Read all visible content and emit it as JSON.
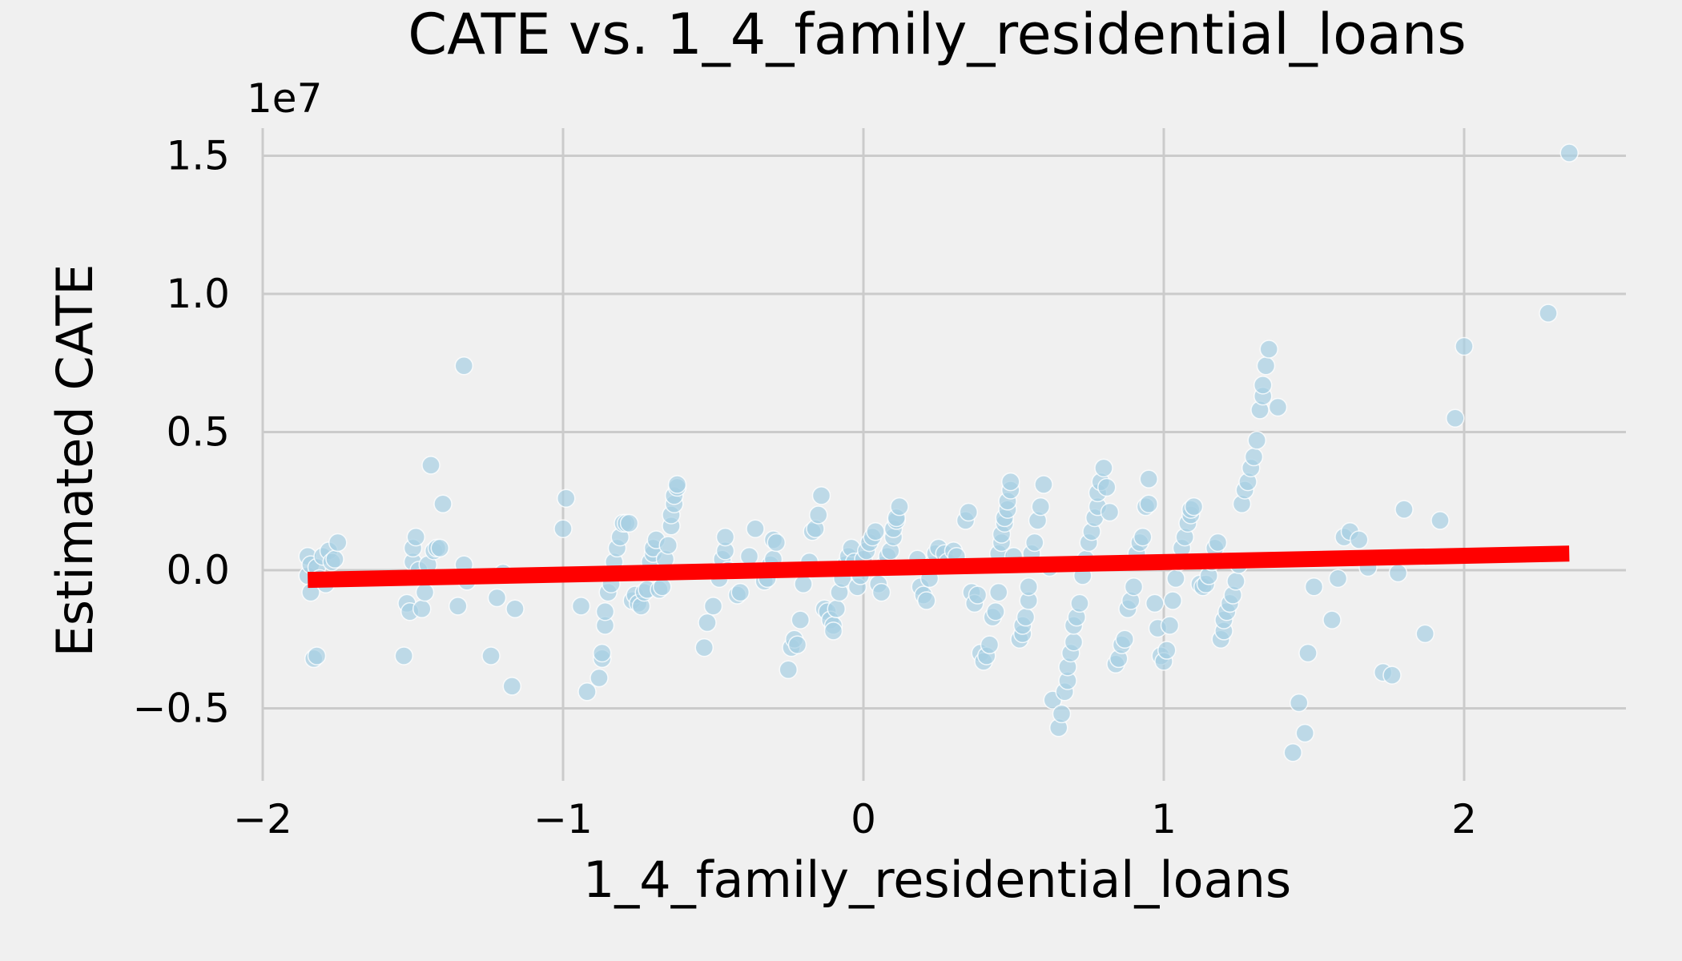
{
  "chart_data": {
    "type": "scatter",
    "title": "CATE vs. 1_4_family_residential_loans",
    "xlabel": "1_4_family_residential_loans",
    "ylabel": "Estimated CATE",
    "y_scale_label": "1e7",
    "xlim": [
      -2.0,
      2.55
    ],
    "ylim": [
      -0.75,
      1.6
    ],
    "xticks": [
      -2,
      -1,
      0,
      1,
      2
    ],
    "xtick_labels": [
      "−2",
      "−1",
      "0",
      "1",
      "2"
    ],
    "yticks": [
      -0.5,
      0.0,
      0.5,
      1.0,
      1.5
    ],
    "ytick_labels": [
      "−0.5",
      "0.0",
      "0.5",
      "1.0",
      "1.5"
    ],
    "grid": true,
    "colors": {
      "background": "#f0f0f0",
      "points": "#a6cee3",
      "trend": "#ff0000",
      "grid": "#cbcbcb"
    },
    "series": [
      {
        "kind": "scatter",
        "points": [
          [
            -1.85,
            -0.02
          ],
          [
            -1.85,
            0.05
          ],
          [
            -1.84,
            -0.08
          ],
          [
            -1.84,
            0.02
          ],
          [
            -1.83,
            -0.32
          ],
          [
            -1.82,
            -0.31
          ],
          [
            -1.82,
            0.01
          ],
          [
            -1.81,
            -0.03
          ],
          [
            -1.8,
            0.05
          ],
          [
            -1.79,
            -0.05
          ],
          [
            -1.78,
            0.07
          ],
          [
            -1.77,
            0.03
          ],
          [
            -1.76,
            0.04
          ],
          [
            -1.75,
            0.1
          ],
          [
            -1.53,
            -0.31
          ],
          [
            -1.52,
            -0.12
          ],
          [
            -1.51,
            -0.15
          ],
          [
            -1.5,
            0.03
          ],
          [
            -1.5,
            0.08
          ],
          [
            -1.49,
            0.12
          ],
          [
            -1.48,
            0.0
          ],
          [
            -1.47,
            -0.14
          ],
          [
            -1.46,
            -0.08
          ],
          [
            -1.45,
            0.02
          ],
          [
            -1.44,
            0.38
          ],
          [
            -1.43,
            0.07
          ],
          [
            -1.42,
            0.08
          ],
          [
            -1.41,
            0.08
          ],
          [
            -1.4,
            0.24
          ],
          [
            -1.35,
            -0.13
          ],
          [
            -1.33,
            0.74
          ],
          [
            -1.33,
            0.02
          ],
          [
            -1.32,
            -0.04
          ],
          [
            -1.24,
            -0.31
          ],
          [
            -1.22,
            -0.1
          ],
          [
            -1.2,
            -0.01
          ],
          [
            -1.17,
            -0.42
          ],
          [
            -1.16,
            -0.14
          ],
          [
            -1.0,
            0.15
          ],
          [
            -0.99,
            0.26
          ],
          [
            -0.94,
            -0.13
          ],
          [
            -0.92,
            -0.44
          ],
          [
            -0.88,
            -0.39
          ],
          [
            -0.87,
            -0.32
          ],
          [
            -0.87,
            -0.3
          ],
          [
            -0.86,
            -0.2
          ],
          [
            -0.86,
            -0.15
          ],
          [
            -0.85,
            -0.08
          ],
          [
            -0.84,
            -0.05
          ],
          [
            -0.83,
            0.03
          ],
          [
            -0.82,
            0.08
          ],
          [
            -0.81,
            0.12
          ],
          [
            -0.8,
            0.17
          ],
          [
            -0.79,
            0.17
          ],
          [
            -0.78,
            0.17
          ],
          [
            -0.77,
            -0.11
          ],
          [
            -0.76,
            -0.09
          ],
          [
            -0.75,
            -0.12
          ],
          [
            -0.74,
            -0.13
          ],
          [
            -0.73,
            -0.08
          ],
          [
            -0.72,
            -0.07
          ],
          [
            -0.71,
            0.03
          ],
          [
            -0.7,
            0.06
          ],
          [
            -0.7,
            0.08
          ],
          [
            -0.69,
            0.11
          ],
          [
            -0.68,
            -0.07
          ],
          [
            -0.67,
            -0.06
          ],
          [
            -0.66,
            0.04
          ],
          [
            -0.65,
            0.09
          ],
          [
            -0.64,
            0.16
          ],
          [
            -0.64,
            0.2
          ],
          [
            -0.63,
            0.24
          ],
          [
            -0.63,
            0.27
          ],
          [
            -0.62,
            0.3
          ],
          [
            -0.62,
            0.31
          ],
          [
            -0.53,
            -0.28
          ],
          [
            -0.52,
            -0.19
          ],
          [
            -0.5,
            -0.13
          ],
          [
            -0.48,
            -0.03
          ],
          [
            -0.47,
            0.04
          ],
          [
            -0.46,
            0.07
          ],
          [
            -0.46,
            0.12
          ],
          [
            -0.45,
            0.0
          ],
          [
            -0.42,
            -0.09
          ],
          [
            -0.41,
            -0.08
          ],
          [
            -0.38,
            0.05
          ],
          [
            -0.36,
            0.15
          ],
          [
            -0.33,
            -0.04
          ],
          [
            -0.32,
            -0.03
          ],
          [
            -0.31,
            0.02
          ],
          [
            -0.3,
            0.04
          ],
          [
            -0.3,
            0.11
          ],
          [
            -0.29,
            0.1
          ],
          [
            -0.25,
            -0.36
          ],
          [
            -0.24,
            -0.28
          ],
          [
            -0.23,
            -0.25
          ],
          [
            -0.22,
            -0.27
          ],
          [
            -0.21,
            -0.18
          ],
          [
            -0.2,
            -0.05
          ],
          [
            -0.18,
            0.03
          ],
          [
            -0.17,
            0.14
          ],
          [
            -0.16,
            0.15
          ],
          [
            -0.15,
            0.2
          ],
          [
            -0.14,
            0.27
          ],
          [
            -0.13,
            -0.14
          ],
          [
            -0.12,
            -0.15
          ],
          [
            -0.11,
            -0.18
          ],
          [
            -0.1,
            -0.2
          ],
          [
            -0.1,
            -0.22
          ],
          [
            -0.09,
            -0.14
          ],
          [
            -0.08,
            -0.08
          ],
          [
            -0.07,
            -0.03
          ],
          [
            -0.06,
            0.02
          ],
          [
            -0.05,
            0.05
          ],
          [
            -0.04,
            0.08
          ],
          [
            -0.03,
            0.03
          ],
          [
            -0.02,
            -0.06
          ],
          [
            -0.01,
            -0.02
          ],
          [
            0.0,
            0.04
          ],
          [
            0.01,
            0.07
          ],
          [
            0.02,
            0.1
          ],
          [
            0.03,
            0.12
          ],
          [
            0.04,
            0.14
          ],
          [
            0.05,
            -0.05
          ],
          [
            0.06,
            -0.08
          ],
          [
            0.07,
            0.02
          ],
          [
            0.08,
            0.05
          ],
          [
            0.09,
            0.07
          ],
          [
            0.1,
            0.12
          ],
          [
            0.1,
            0.15
          ],
          [
            0.11,
            0.18
          ],
          [
            0.11,
            0.19
          ],
          [
            0.12,
            0.23
          ],
          [
            0.18,
            0.04
          ],
          [
            0.19,
            -0.06
          ],
          [
            0.2,
            -0.09
          ],
          [
            0.21,
            -0.11
          ],
          [
            0.22,
            -0.03
          ],
          [
            0.23,
            0.02
          ],
          [
            0.24,
            0.06
          ],
          [
            0.25,
            0.08
          ],
          [
            0.27,
            0.06
          ],
          [
            0.28,
            0.03
          ],
          [
            0.3,
            0.07
          ],
          [
            0.31,
            0.05
          ],
          [
            0.34,
            0.18
          ],
          [
            0.35,
            0.21
          ],
          [
            0.36,
            -0.08
          ],
          [
            0.37,
            -0.12
          ],
          [
            0.38,
            -0.09
          ],
          [
            0.39,
            -0.3
          ],
          [
            0.4,
            -0.33
          ],
          [
            0.41,
            -0.31
          ],
          [
            0.42,
            -0.27
          ],
          [
            0.43,
            -0.17
          ],
          [
            0.44,
            -0.15
          ],
          [
            0.45,
            -0.08
          ],
          [
            0.45,
            0.06
          ],
          [
            0.46,
            0.1
          ],
          [
            0.46,
            0.13
          ],
          [
            0.47,
            0.17
          ],
          [
            0.47,
            0.19
          ],
          [
            0.48,
            0.22
          ],
          [
            0.48,
            0.25
          ],
          [
            0.49,
            0.29
          ],
          [
            0.49,
            0.32
          ],
          [
            0.5,
            0.05
          ],
          [
            0.52,
            -0.25
          ],
          [
            0.53,
            -0.23
          ],
          [
            0.53,
            -0.2
          ],
          [
            0.54,
            -0.17
          ],
          [
            0.55,
            -0.11
          ],
          [
            0.55,
            -0.06
          ],
          [
            0.56,
            0.06
          ],
          [
            0.57,
            0.1
          ],
          [
            0.58,
            0.18
          ],
          [
            0.59,
            0.23
          ],
          [
            0.6,
            0.31
          ],
          [
            0.62,
            0.01
          ],
          [
            0.63,
            -0.47
          ],
          [
            0.65,
            -0.57
          ],
          [
            0.66,
            -0.52
          ],
          [
            0.67,
            -0.44
          ],
          [
            0.68,
            -0.4
          ],
          [
            0.68,
            -0.35
          ],
          [
            0.69,
            -0.3
          ],
          [
            0.7,
            -0.26
          ],
          [
            0.7,
            -0.2
          ],
          [
            0.71,
            -0.17
          ],
          [
            0.72,
            -0.12
          ],
          [
            0.73,
            -0.02
          ],
          [
            0.74,
            0.04
          ],
          [
            0.75,
            0.1
          ],
          [
            0.76,
            0.14
          ],
          [
            0.77,
            0.19
          ],
          [
            0.78,
            0.23
          ],
          [
            0.78,
            0.28
          ],
          [
            0.79,
            0.32
          ],
          [
            0.8,
            0.37
          ],
          [
            0.81,
            0.3
          ],
          [
            0.82,
            0.21
          ],
          [
            0.84,
            -0.34
          ],
          [
            0.85,
            -0.32
          ],
          [
            0.86,
            -0.27
          ],
          [
            0.87,
            -0.25
          ],
          [
            0.88,
            -0.14
          ],
          [
            0.89,
            -0.11
          ],
          [
            0.9,
            -0.06
          ],
          [
            0.91,
            0.06
          ],
          [
            0.92,
            0.1
          ],
          [
            0.93,
            0.12
          ],
          [
            0.94,
            0.23
          ],
          [
            0.95,
            0.24
          ],
          [
            0.95,
            0.33
          ],
          [
            0.97,
            -0.12
          ],
          [
            0.98,
            -0.21
          ],
          [
            0.99,
            -0.31
          ],
          [
            1.0,
            -0.33
          ],
          [
            1.01,
            -0.29
          ],
          [
            1.02,
            -0.2
          ],
          [
            1.03,
            -0.11
          ],
          [
            1.04,
            -0.03
          ],
          [
            1.05,
            0.03
          ],
          [
            1.06,
            0.08
          ],
          [
            1.07,
            0.12
          ],
          [
            1.08,
            0.17
          ],
          [
            1.09,
            0.2
          ],
          [
            1.09,
            0.22
          ],
          [
            1.1,
            0.23
          ],
          [
            1.12,
            -0.05
          ],
          [
            1.13,
            -0.06
          ],
          [
            1.14,
            -0.05
          ],
          [
            1.15,
            -0.02
          ],
          [
            1.16,
            0.03
          ],
          [
            1.17,
            0.08
          ],
          [
            1.18,
            0.1
          ],
          [
            1.19,
            -0.25
          ],
          [
            1.2,
            -0.22
          ],
          [
            1.2,
            -0.18
          ],
          [
            1.21,
            -0.15
          ],
          [
            1.22,
            -0.12
          ],
          [
            1.23,
            -0.09
          ],
          [
            1.24,
            -0.04
          ],
          [
            1.25,
            0.02
          ],
          [
            1.26,
            0.24
          ],
          [
            1.27,
            0.29
          ],
          [
            1.28,
            0.32
          ],
          [
            1.29,
            0.37
          ],
          [
            1.3,
            0.41
          ],
          [
            1.31,
            0.47
          ],
          [
            1.32,
            0.58
          ],
          [
            1.33,
            0.63
          ],
          [
            1.33,
            0.67
          ],
          [
            1.34,
            0.74
          ],
          [
            1.35,
            0.8
          ],
          [
            1.38,
            0.59
          ],
          [
            1.43,
            -0.66
          ],
          [
            1.45,
            -0.48
          ],
          [
            1.47,
            -0.59
          ],
          [
            1.48,
            -0.3
          ],
          [
            1.5,
            -0.06
          ],
          [
            1.56,
            -0.18
          ],
          [
            1.58,
            -0.03
          ],
          [
            1.6,
            0.12
          ],
          [
            1.62,
            0.14
          ],
          [
            1.65,
            0.11
          ],
          [
            1.68,
            0.01
          ],
          [
            1.73,
            -0.37
          ],
          [
            1.76,
            -0.38
          ],
          [
            1.78,
            -0.01
          ],
          [
            1.8,
            0.22
          ],
          [
            1.87,
            -0.23
          ],
          [
            1.92,
            0.18
          ],
          [
            1.97,
            0.55
          ],
          [
            2.0,
            0.81
          ],
          [
            2.28,
            0.93
          ],
          [
            2.35,
            1.51
          ]
        ]
      },
      {
        "kind": "line",
        "points": [
          [
            -1.85,
            -0.035
          ],
          [
            2.35,
            0.06
          ]
        ]
      }
    ]
  }
}
